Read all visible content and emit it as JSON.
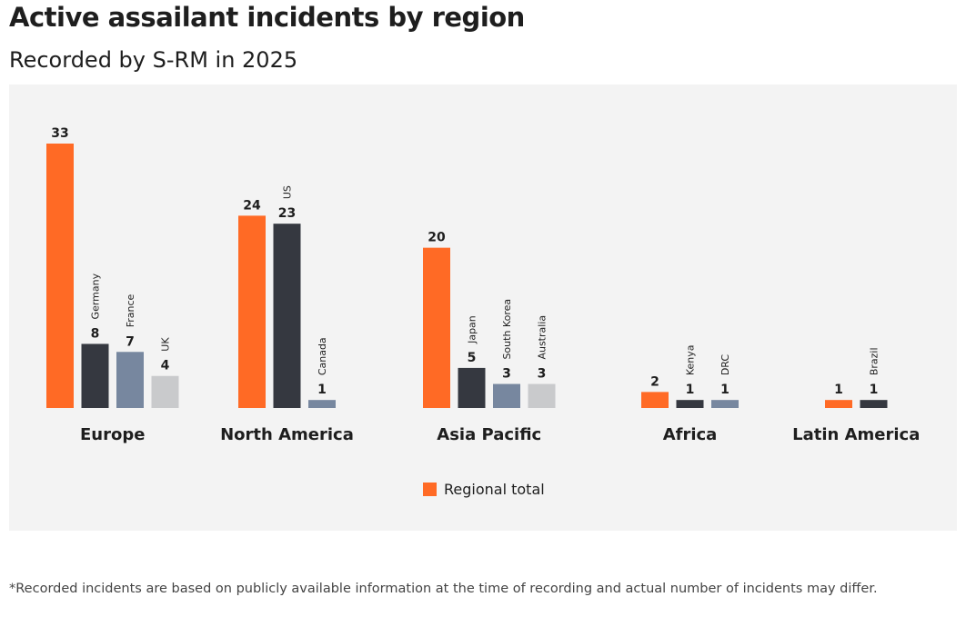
{
  "title": "Active assailant incidents by region",
  "subtitle": "Recorded by S-RM in 2025",
  "footnote": "*Recorded incidents are based on publicly available information at the time of recording and actual number of incidents may differ.",
  "chart_data": {
    "type": "bar",
    "legend": {
      "label": "Regional total",
      "color": "#FF6A25",
      "placement": "bottom"
    },
    "colors": [
      "#FF6A25",
      "#353840",
      "#77879F",
      "#C9CACC"
    ],
    "grid": false,
    "ylim": [
      0,
      33
    ],
    "groups": [
      {
        "region": "Europe",
        "total": 33,
        "countries": [
          {
            "name": "Germany",
            "value": 8
          },
          {
            "name": "France",
            "value": 7
          },
          {
            "name": "UK",
            "value": 4
          }
        ]
      },
      {
        "region": "North America",
        "total": 24,
        "countries": [
          {
            "name": "US",
            "value": 23
          },
          {
            "name": "Canada",
            "value": 1
          }
        ]
      },
      {
        "region": "Asia Pacific",
        "total": 20,
        "countries": [
          {
            "name": "Japan",
            "value": 5
          },
          {
            "name": "South Korea",
            "value": 3
          },
          {
            "name": "Australia",
            "value": 3
          }
        ]
      },
      {
        "region": "Africa",
        "total": 2,
        "countries": [
          {
            "name": "Kenya",
            "value": 1
          },
          {
            "name": "DRC",
            "value": 1
          }
        ]
      },
      {
        "region": "Latin America",
        "total": 1,
        "countries": [
          {
            "name": "Brazil",
            "value": 1
          }
        ]
      }
    ]
  }
}
